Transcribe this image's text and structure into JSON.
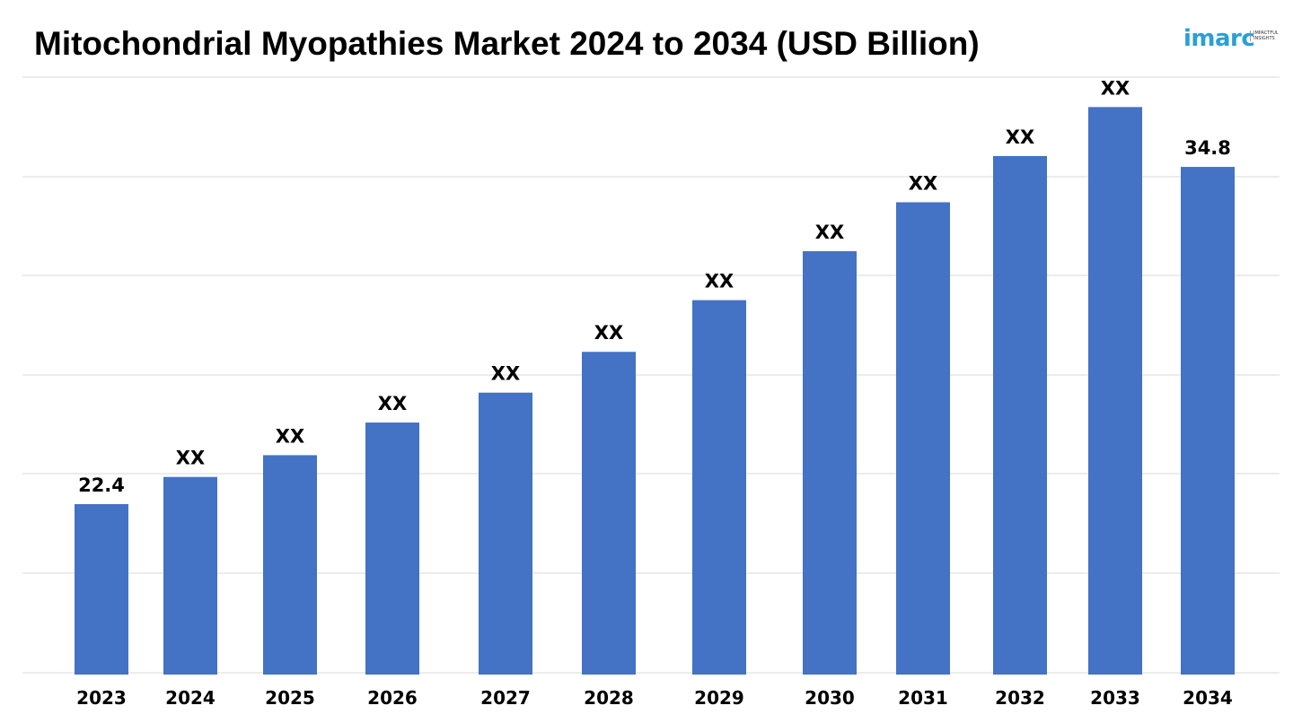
{
  "header": {
    "title": "Mitochondrial Myopathies Market 2024 to 2034 (USD Billion)"
  },
  "logo": {
    "word": "imarc",
    "tagline": "IMPACTFUL INSIGHTS",
    "color": "#2a9fd6"
  },
  "chart_data": {
    "type": "bar",
    "title": "Mitochondrial Myopathies Market 2024 to 2034 (USD Billion)",
    "xlabel": "",
    "ylabel": "",
    "categories": [
      "2023",
      "2024",
      "2025",
      "2026",
      "2027",
      "2028",
      "2029",
      "2030",
      "2031",
      "2032",
      "2033",
      "2034"
    ],
    "values": [
      22.4,
      23.4,
      24.2,
      25.4,
      26.5,
      28.0,
      29.9,
      31.7,
      33.5,
      35.2,
      37.0,
      34.8
    ],
    "data_labels": [
      "22.4",
      "XX",
      "XX",
      "XX",
      "XX",
      "XX",
      "XX",
      "XX",
      "XX",
      "XX",
      "XX",
      "34.8"
    ],
    "ylim": [
      16.2,
      38.1
    ],
    "grid": true,
    "legend": "none",
    "bar_color": "#4472c4"
  }
}
